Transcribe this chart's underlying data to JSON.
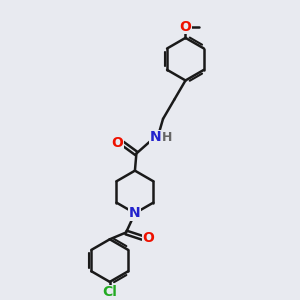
{
  "bg_color": "#e8eaf0",
  "bond_color": "#1a1a1a",
  "bond_width": 1.8,
  "atom_colors": {
    "O": "#ee1100",
    "N": "#2222cc",
    "Cl": "#22aa22",
    "H_col": "#666666",
    "C": "#1a1a1a"
  },
  "font_size": 9
}
